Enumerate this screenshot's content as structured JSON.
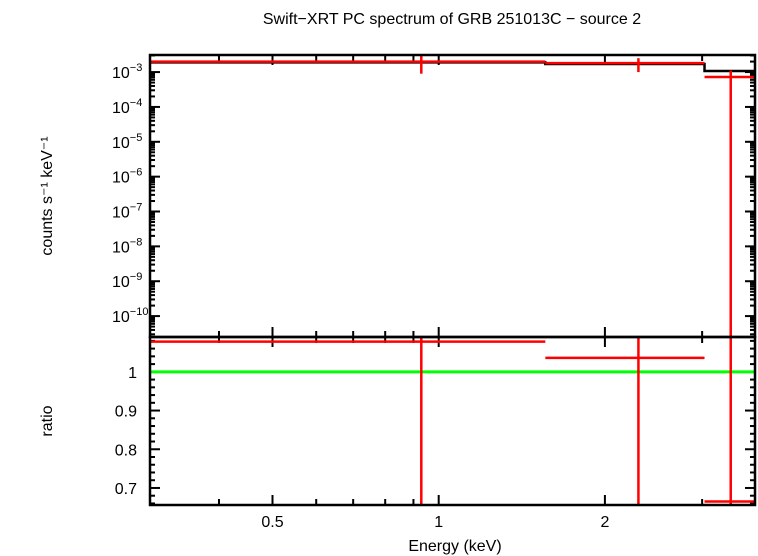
{
  "chart_data": [
    {
      "type": "scatter",
      "panel": "spectrum",
      "title": "Swift−XRT PC spectrum of GRB 251013C − source 2",
      "ylabel": "counts s⁻¹ keV⁻¹",
      "xscale": "log",
      "yscale": "log",
      "xlim": [
        0.3,
        3.74
      ],
      "ylim_exponent": [
        -10.6,
        -2.51
      ],
      "ytick_exponents": [
        -3,
        -4,
        -5,
        -6,
        -7,
        -8,
        -9,
        -10
      ],
      "ytick_base": "10",
      "data": {
        "name": "",
        "color": "#ff0000",
        "points": [
          {
            "x": 0.93,
            "xlo": 0.3,
            "xhi": 1.56,
            "y": 0.002,
            "ylo": 0.0009,
            "yhi": 0.004
          },
          {
            "x": 2.3,
            "xlo": 1.56,
            "xhi": 3.03,
            "y": 0.0018,
            "ylo": 0.001,
            "yhi": 0.0025
          },
          {
            "x": 3.38,
            "xlo": 3.03,
            "xhi": 3.74,
            "y": 0.00072,
            "ylo": 1e-12,
            "yhi": 0.0011
          }
        ]
      },
      "model": {
        "color": "#000000",
        "steps": [
          {
            "xlo": 0.3,
            "xhi": 1.56,
            "y": 0.0019
          },
          {
            "xlo": 1.56,
            "xhi": 3.03,
            "y": 0.0017
          },
          {
            "xlo": 3.03,
            "xhi": 3.74,
            "y": 0.00107
          }
        ]
      }
    },
    {
      "type": "scatter",
      "panel": "ratio",
      "xlabel": "Energy (keV)",
      "ylabel": "ratio",
      "xscale": "log",
      "xlim": [
        0.3,
        3.74
      ],
      "ylim": [
        0.656,
        1.09
      ],
      "xticks": [
        {
          "v": 0.5,
          "label": "0.5"
        },
        {
          "v": 1,
          "label": "1"
        },
        {
          "v": 2,
          "label": "2"
        }
      ],
      "yticks": [
        {
          "v": 1,
          "label": "1"
        },
        {
          "v": 0.9,
          "label": "0.9"
        },
        {
          "v": 0.8,
          "label": "0.8"
        },
        {
          "v": 0.7,
          "label": "0.7"
        }
      ],
      "reference_line": {
        "y": 1,
        "color": "#00ff00"
      },
      "data": {
        "color": "#ff0000",
        "points": [
          {
            "x": 0.93,
            "xlo": 0.3,
            "xhi": 1.56,
            "y": 1.078,
            "ylo": 0.5,
            "yhi": 1.5
          },
          {
            "x": 2.3,
            "xlo": 1.56,
            "xhi": 3.03,
            "y": 1.036,
            "ylo": 0.5,
            "yhi": 1.5
          },
          {
            "x": 3.38,
            "xlo": 3.03,
            "xhi": 3.74,
            "y": 0.665,
            "ylo": 0.5,
            "yhi": 1.5
          }
        ]
      }
    }
  ]
}
